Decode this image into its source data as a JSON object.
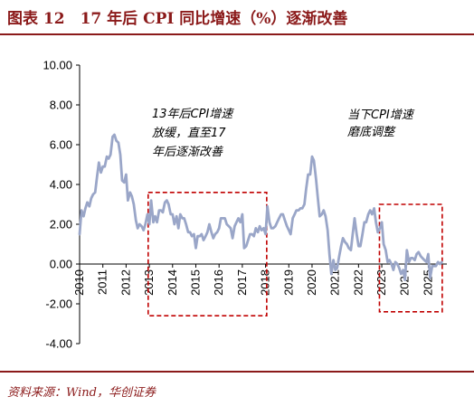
{
  "header": {
    "title": "图表 12　17 年后 CPI 同比增速（%）逐渐改善"
  },
  "footer": {
    "source": "资料来源：Wind，华创证券"
  },
  "chart_data": {
    "type": "line",
    "title": "图表 12　17 年后 CPI 同比增速（%）逐渐改善",
    "xlabel": "",
    "ylabel": "",
    "ylim": [
      -4,
      10
    ],
    "yticks": [
      "10.00",
      "8.00",
      "6.00",
      "4.00",
      "2.00",
      "0.00",
      "-2.00",
      "-4.00"
    ],
    "xlim": [
      2010,
      2025.8
    ],
    "xticks": [
      "2010",
      "2011",
      "2012",
      "2013",
      "2014",
      "2015",
      "2016",
      "2017",
      "2018",
      "2019",
      "2020",
      "2021",
      "2022",
      "2023",
      "2024",
      "2025"
    ],
    "grid": false,
    "legend": "none",
    "line_color": "#9aa6c8",
    "annotation_color": "#c00000",
    "annotations": [
      {
        "lines": [
          "13年后CPI增速",
          "放缓，直至17",
          "年后逐渐改善"
        ]
      },
      {
        "lines": [
          "当下CPI增速",
          "磨底调整"
        ]
      }
    ],
    "highlight_ranges": [
      {
        "x0": 2012.95,
        "x1": 2018.05,
        "y0": -2.6,
        "y1": 3.6
      },
      {
        "x0": 2022.9,
        "x1": 2025.6,
        "y0": -2.4,
        "y1": 3.0
      }
    ],
    "series": [
      {
        "x": [
          2010.0,
          2010.08,
          2010.17,
          2010.25,
          2010.33,
          2010.42,
          2010.5,
          2010.58,
          2010.67,
          2010.75,
          2010.83,
          2010.92,
          2011.0,
          2011.08,
          2011.17,
          2011.25,
          2011.33,
          2011.42,
          2011.5,
          2011.58,
          2011.67,
          2011.75,
          2011.83,
          2011.92,
          2012.0,
          2012.08,
          2012.17,
          2012.25,
          2012.33,
          2012.42,
          2012.5,
          2012.58,
          2012.67,
          2012.75,
          2012.83,
          2012.92,
          2013.0,
          2013.08,
          2013.17,
          2013.25,
          2013.33,
          2013.42,
          2013.5,
          2013.58,
          2013.67,
          2013.75,
          2013.83,
          2013.92,
          2014.0,
          2014.08,
          2014.17,
          2014.25,
          2014.33,
          2014.42,
          2014.5,
          2014.58,
          2014.67,
          2014.75,
          2014.83,
          2014.92,
          2015.0,
          2015.08,
          2015.17,
          2015.25,
          2015.33,
          2015.42,
          2015.5,
          2015.58,
          2015.67,
          2015.75,
          2015.83,
          2015.92,
          2016.0,
          2016.08,
          2016.17,
          2016.25,
          2016.33,
          2016.42,
          2016.5,
          2016.58,
          2016.67,
          2016.75,
          2016.83,
          2016.92,
          2017.0,
          2017.08,
          2017.17,
          2017.25,
          2017.33,
          2017.42,
          2017.5,
          2017.58,
          2017.67,
          2017.75,
          2017.83,
          2017.92,
          2018.0,
          2018.08,
          2018.17,
          2018.25,
          2018.33,
          2018.42,
          2018.5,
          2018.58,
          2018.67,
          2018.75,
          2018.83,
          2018.92,
          2019.0,
          2019.08,
          2019.17,
          2019.25,
          2019.33,
          2019.42,
          2019.5,
          2019.58,
          2019.67,
          2019.75,
          2019.83,
          2019.92,
          2020.0,
          2020.08,
          2020.17,
          2020.25,
          2020.33,
          2020.42,
          2020.5,
          2020.58,
          2020.67,
          2020.75,
          2020.83,
          2020.92,
          2021.0,
          2021.08,
          2021.17,
          2021.25,
          2021.33,
          2021.42,
          2021.5,
          2021.58,
          2021.67,
          2021.75,
          2021.83,
          2021.92,
          2022.0,
          2022.08,
          2022.17,
          2022.25,
          2022.33,
          2022.42,
          2022.5,
          2022.58,
          2022.67,
          2022.75,
          2022.83,
          2022.92,
          2023.0,
          2023.08,
          2023.17,
          2023.25,
          2023.33,
          2023.42,
          2023.5,
          2023.58,
          2023.67,
          2023.75,
          2023.83,
          2023.92,
          2024.0,
          2024.08,
          2024.17,
          2024.25,
          2024.33,
          2024.42,
          2024.5,
          2024.58,
          2024.67,
          2024.75,
          2024.83,
          2024.92,
          2025.0,
          2025.08,
          2025.17,
          2025.25,
          2025.33,
          2025.42,
          2025.5,
          2025.58
        ],
        "y": [
          1.5,
          2.7,
          2.4,
          2.8,
          3.1,
          2.9,
          3.3,
          3.5,
          3.6,
          4.4,
          5.1,
          4.6,
          4.9,
          4.9,
          5.4,
          5.3,
          5.5,
          6.4,
          6.5,
          6.2,
          6.1,
          5.5,
          4.2,
          4.1,
          4.5,
          3.2,
          3.6,
          3.4,
          3.0,
          2.2,
          1.8,
          2.0,
          1.9,
          1.7,
          2.0,
          2.5,
          2.0,
          3.2,
          2.1,
          2.4,
          2.1,
          2.7,
          2.7,
          2.6,
          3.1,
          3.2,
          3.0,
          2.5,
          2.5,
          2.0,
          2.4,
          1.8,
          2.5,
          2.3,
          2.3,
          2.0,
          1.6,
          1.6,
          1.4,
          1.5,
          0.8,
          1.4,
          1.4,
          1.5,
          1.2,
          1.4,
          1.6,
          2.0,
          1.6,
          1.3,
          1.5,
          1.6,
          1.8,
          2.3,
          2.3,
          2.3,
          2.0,
          1.9,
          1.8,
          1.3,
          1.9,
          2.1,
          2.3,
          2.1,
          2.5,
          0.8,
          0.9,
          1.2,
          1.5,
          1.5,
          1.4,
          1.8,
          1.6,
          1.9,
          1.7,
          1.8,
          1.5,
          2.9,
          2.1,
          1.8,
          1.8,
          1.9,
          2.1,
          2.3,
          2.5,
          2.5,
          2.2,
          1.9,
          1.7,
          1.5,
          2.3,
          2.5,
          2.7,
          2.7,
          2.8,
          2.8,
          3.0,
          3.8,
          4.5,
          4.5,
          5.4,
          5.2,
          4.3,
          3.3,
          2.4,
          2.5,
          2.7,
          2.4,
          1.7,
          0.5,
          -0.5,
          0.2,
          -0.3,
          -0.2,
          0.4,
          0.9,
          1.3,
          1.1,
          1.0,
          0.8,
          0.7,
          1.5,
          2.3,
          1.5,
          0.9,
          0.9,
          1.5,
          2.1,
          2.1,
          2.5,
          2.7,
          2.5,
          2.8,
          2.1,
          1.6,
          1.8,
          2.1,
          1.0,
          0.7,
          0.1,
          0.2,
          0.0,
          -0.3,
          0.1,
          0.0,
          -0.2,
          -0.5,
          -0.3,
          -0.8,
          0.7,
          0.1,
          0.3,
          0.3,
          0.2,
          0.5,
          0.6,
          0.4,
          0.3,
          0.2,
          0.1,
          0.5,
          -0.7,
          -0.1,
          -0.1,
          -0.1,
          0.1,
          0.0,
          0.1
        ]
      }
    ]
  }
}
